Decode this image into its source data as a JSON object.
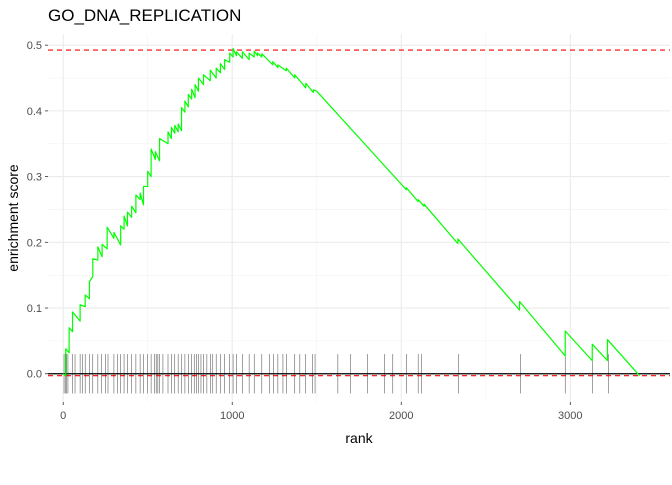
{
  "chart_data": {
    "type": "line",
    "title": "GO_DNA_REPLICATION",
    "xlabel": "rank",
    "ylabel": "enrichment score",
    "xlim": [
      -90,
      3590
    ],
    "ylim": [
      -0.043,
      0.517
    ],
    "xticks": [
      0,
      1000,
      2000,
      3000
    ],
    "xtick_labels": [
      "0",
      "1000",
      "2000",
      "3000"
    ],
    "yticks": [
      0.0,
      0.1,
      0.2,
      0.3,
      0.4,
      0.5
    ],
    "ytick_labels": [
      "0.0",
      "0.1",
      "0.2",
      "0.3",
      "0.4",
      "0.5"
    ],
    "grid": true,
    "series": [
      {
        "color": "#00ff00",
        "x": [
          0,
          15,
          15,
          35,
          35,
          55,
          55,
          100,
          100,
          130,
          130,
          155,
          155,
          175,
          175,
          205,
          205,
          230,
          230,
          260,
          260,
          300,
          300,
          340,
          340,
          360,
          360,
          380,
          380,
          405,
          405,
          430,
          430,
          455,
          455,
          475,
          475,
          500,
          500,
          520,
          520,
          545,
          545,
          570,
          570,
          620,
          620,
          640,
          640,
          660,
          660,
          680,
          680,
          700,
          700,
          720,
          720,
          740,
          740,
          760,
          760,
          780,
          780,
          800,
          800,
          830,
          830,
          870,
          870,
          905,
          905,
          930,
          930,
          955,
          955,
          985,
          985,
          1005,
          1005,
          1025,
          1025,
          1060,
          1060,
          1100,
          1100,
          1130,
          1130,
          1150,
          1150,
          1175,
          1175,
          1240,
          1240,
          1270,
          1270,
          1320,
          1320,
          1370,
          1370,
          1435,
          1435,
          1480,
          1480,
          1500,
          1500,
          1800,
          1800,
          2030,
          2030,
          2100,
          2100,
          2135,
          2135,
          2335,
          2335,
          2700,
          2700,
          2970,
          2970,
          3130,
          3130,
          3220,
          3220,
          3410
        ],
        "y": [
          0.0,
          -0.003,
          0.038,
          0.032,
          0.07,
          0.064,
          0.094,
          0.08,
          0.105,
          0.102,
          0.12,
          0.114,
          0.14,
          0.148,
          0.175,
          0.173,
          0.193,
          0.178,
          0.197,
          0.19,
          0.223,
          0.206,
          0.215,
          0.196,
          0.225,
          0.22,
          0.24,
          0.225,
          0.246,
          0.238,
          0.255,
          0.245,
          0.272,
          0.265,
          0.275,
          0.257,
          0.285,
          0.285,
          0.308,
          0.3,
          0.342,
          0.326,
          0.338,
          0.324,
          0.358,
          0.35,
          0.368,
          0.358,
          0.375,
          0.366,
          0.378,
          0.368,
          0.38,
          0.37,
          0.405,
          0.398,
          0.415,
          0.406,
          0.425,
          0.418,
          0.433,
          0.42,
          0.44,
          0.43,
          0.45,
          0.44,
          0.455,
          0.446,
          0.462,
          0.45,
          0.465,
          0.458,
          0.472,
          0.463,
          0.478,
          0.474,
          0.488,
          0.482,
          0.495,
          0.484,
          0.49,
          0.48,
          0.49,
          0.478,
          0.488,
          0.482,
          0.491,
          0.484,
          0.488,
          0.482,
          0.487,
          0.47,
          0.475,
          0.466,
          0.47,
          0.461,
          0.465,
          0.45,
          0.455,
          0.435,
          0.442,
          0.428,
          0.432,
          0.43,
          0.43,
          0.345,
          0.345,
          0.28,
          0.283,
          0.262,
          0.265,
          0.255,
          0.258,
          0.198,
          0.205,
          0.097,
          0.11,
          0.027,
          0.065,
          0.02,
          0.045,
          0.02,
          0.052,
          -0.003
        ]
      }
    ],
    "reference_lines": [
      {
        "axis": "y",
        "value": 0.4925,
        "color": "#ff0000",
        "style": "dashed"
      },
      {
        "axis": "y",
        "value": -0.003,
        "color": "#ff0000",
        "style": "dashed"
      },
      {
        "axis": "y",
        "value": 0.0,
        "color": "#000000",
        "style": "solid"
      }
    ],
    "rug": {
      "color": "#000000",
      "ymin": -0.03,
      "ymax": 0.03,
      "x": [
        5,
        12,
        20,
        28,
        55,
        70,
        100,
        115,
        130,
        155,
        175,
        205,
        225,
        250,
        265,
        300,
        320,
        340,
        360,
        380,
        405,
        430,
        455,
        475,
        500,
        520,
        540,
        550,
        560,
        570,
        590,
        620,
        640,
        660,
        680,
        700,
        720,
        740,
        760,
        775,
        790,
        800,
        815,
        830,
        850,
        870,
        885,
        905,
        930,
        955,
        985,
        1005,
        1025,
        1060,
        1100,
        1130,
        1175,
        1220,
        1245,
        1270,
        1300,
        1320,
        1370,
        1400,
        1435,
        1475,
        1490,
        1625,
        1700,
        1800,
        1900,
        1950,
        2030,
        2100,
        2120,
        2340,
        2705,
        2970,
        3130,
        3225
      ]
    }
  }
}
